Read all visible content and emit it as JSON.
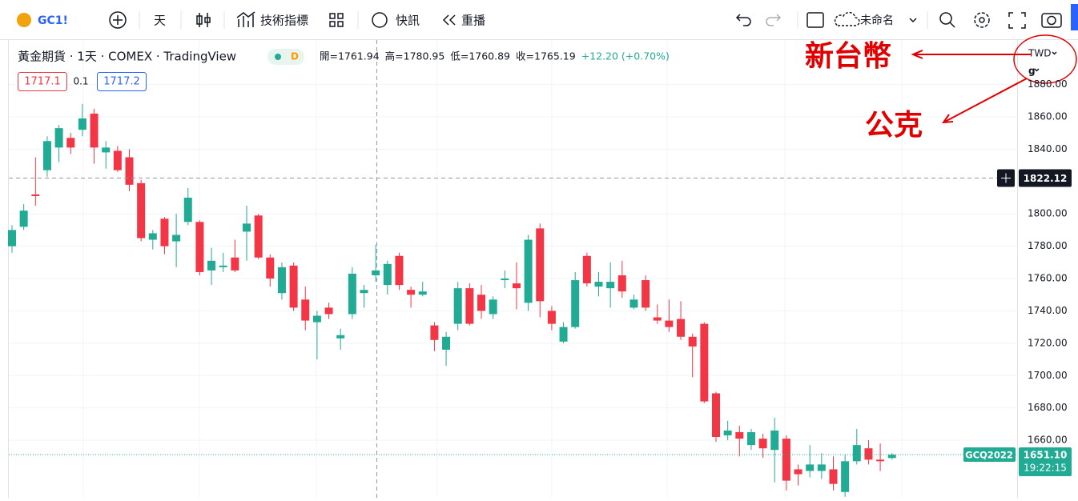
{
  "toolbar": {
    "symbol": "GC1!",
    "interval": "天",
    "indicators": "技術指標",
    "alerts": "快訊",
    "replay": "重播",
    "layout": "未命名"
  },
  "legend": {
    "title": "黃金期貨 · 1天 · COMEX · TradingView",
    "badge": "D",
    "ohlc": [
      "開=1761.94",
      "高=1780.95",
      "低=1760.89",
      "收=1765.19",
      "+12.20 (+0.70%)"
    ],
    "sell": "1717.1",
    "spread": "0.1",
    "buy": "1717.2"
  },
  "axis_controls": {
    "currency": "TWD",
    "unit": "g"
  },
  "annotations": {
    "currency": "新台幣",
    "unit": "公克"
  },
  "chart_data": {
    "type": "candlestick",
    "up_color": "#22ab94",
    "down_color": "#f23645",
    "ylim": [
      1624.4,
      1908.5
    ],
    "yticks": [
      {
        "value": 1660,
        "label": "1660.00"
      },
      {
        "value": 1680,
        "label": "1680.00"
      },
      {
        "value": 1700,
        "label": "1700.00"
      },
      {
        "value": 1720,
        "label": "1720.00"
      },
      {
        "value": 1740,
        "label": "1740.00"
      },
      {
        "value": 1760,
        "label": "1760.00"
      },
      {
        "value": 1780,
        "label": "1780.00"
      },
      {
        "value": 1800,
        "label": "1800.00"
      },
      {
        "value": 1840,
        "label": "1840.00"
      },
      {
        "value": 1860,
        "label": "1860.00"
      },
      {
        "value": 1880,
        "label": "1880.00"
      }
    ],
    "grid": true,
    "open": [
      1780,
      1792,
      1812,
      1827,
      1841,
      1847,
      1852,
      1862,
      1838,
      1839,
      1835,
      1819,
      1784,
      1797,
      1783,
      1795,
      1795,
      1765,
      1767,
      1773,
      1789,
      1799,
      1773,
      1751,
      1768,
      1747,
      1733,
      1742,
      1723,
      1738,
      1751,
      1762,
      1756,
      1774,
      1753,
      1750,
      1731,
      1716,
      1732,
      1754,
      1750,
      1738,
      1759,
      1757,
      1745,
      1791,
      1740,
      1721,
      1730,
      1774,
      1755,
      1754,
      1762,
      1742,
      1759,
      1736,
      1734,
      1735,
      1724,
      1732,
      1689,
      1663,
      1665,
      1657,
      1661,
      1654,
      1661,
      1642,
      1641,
      1641,
      1642,
      1628,
      1647,
      1655,
      1648,
      1649
    ],
    "high": [
      1793,
      1806,
      1835,
      1848,
      1855,
      1850,
      1868,
      1865,
      1845,
      1842,
      1840,
      1821,
      1790,
      1798,
      1800,
      1816,
      1796,
      1779,
      1776,
      1784,
      1805,
      1800,
      1775,
      1770,
      1770,
      1755,
      1740,
      1745,
      1729,
      1767,
      1756,
      1781,
      1771,
      1776,
      1755,
      1758,
      1733,
      1727,
      1758,
      1757,
      1756,
      1749,
      1765,
      1770,
      1787,
      1794,
      1743,
      1733,
      1764,
      1776,
      1764,
      1770,
      1771,
      1750,
      1762,
      1744,
      1747,
      1746,
      1726,
      1733,
      1690,
      1672,
      1669,
      1667,
      1664,
      1674,
      1663,
      1645,
      1657,
      1652,
      1650,
      1651,
      1667,
      1660,
      1658,
      1652
    ],
    "low": [
      1776,
      1790,
      1805,
      1823,
      1832,
      1837,
      1848,
      1831,
      1828,
      1826,
      1814,
      1783,
      1778,
      1775,
      1767,
      1793,
      1762,
      1756,
      1764,
      1764,
      1771,
      1772,
      1755,
      1747,
      1740,
      1728,
      1710,
      1735,
      1716,
      1735,
      1742,
      1758,
      1750,
      1753,
      1742,
      1749,
      1715,
      1706,
      1728,
      1731,
      1735,
      1735,
      1754,
      1741,
      1740,
      1736,
      1728,
      1720,
      1729,
      1755,
      1749,
      1742,
      1748,
      1741,
      1740,
      1732,
      1727,
      1722,
      1699,
      1683,
      1659,
      1660,
      1650,
      1654,
      1649,
      1634,
      1629,
      1632,
      1637,
      1636,
      1629,
      1625,
      1645,
      1645,
      1641,
      1648
    ],
    "close": [
      1790,
      1802,
      1811,
      1845,
      1853,
      1841,
      1859,
      1841,
      1841,
      1827,
      1818,
      1785,
      1788,
      1780,
      1787,
      1810,
      1764,
      1771,
      1768,
      1765,
      1794,
      1773,
      1760,
      1767,
      1742,
      1734,
      1737,
      1738,
      1725,
      1763,
      1753,
      1765,
      1769,
      1756,
      1750,
      1752,
      1722,
      1724,
      1754,
      1732,
      1740,
      1747,
      1760,
      1754,
      1784,
      1746,
      1732,
      1730,
      1759,
      1757,
      1758,
      1758,
      1752,
      1747,
      1742,
      1734,
      1730,
      1724,
      1718,
      1684,
      1662,
      1666,
      1661,
      1665,
      1655,
      1666,
      1635,
      1639,
      1645,
      1645,
      1633,
      1647,
      1657,
      1648,
      1647,
      1651
    ],
    "crosshair_price": 1822.12,
    "last_price": {
      "symbol": "GCQ2022",
      "value": 1651.1,
      "value_label": "1651.10",
      "countdown": "19:22:15"
    }
  }
}
